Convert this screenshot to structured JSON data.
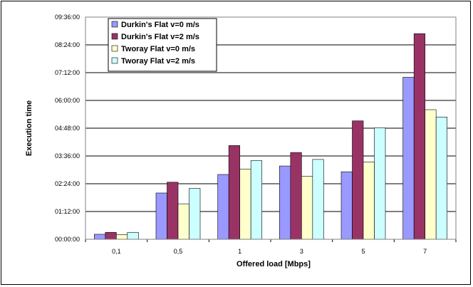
{
  "chart_data": {
    "type": "bar",
    "categories": [
      "0,1",
      "0,5",
      "1",
      "3",
      "5",
      "7"
    ],
    "series": [
      {
        "name": "Durkin's Flat v=0 m/s",
        "color": "#9999ff",
        "values": [
          "00:13:00",
          "02:00:00",
          "02:48:00",
          "03:10:00",
          "02:55:00",
          "07:00:00"
        ]
      },
      {
        "name": "Durkin's Flat v=2 m/s",
        "color": "#993366",
        "values": [
          "00:18:00",
          "02:28:00",
          "04:03:00",
          "03:45:00",
          "05:07:00",
          "08:53:00"
        ]
      },
      {
        "name": "Tworay Flat v=0 m/s",
        "color": "#ffffcc",
        "values": [
          "00:12:00",
          "01:32:00",
          "03:02:00",
          "02:43:00",
          "03:20:00",
          "05:36:00"
        ]
      },
      {
        "name": "Tworay Flat v=2 m/s",
        "color": "#ccffff",
        "values": [
          "00:18:00",
          "02:12:00",
          "03:24:00",
          "03:27:00",
          "04:49:00",
          "05:17:00"
        ]
      }
    ],
    "ylabel": "Execution time",
    "xlabel": "Offered load [Mbps]",
    "y_ticks": [
      "00:00:00",
      "01:12:00",
      "02:24:00",
      "03:36:00",
      "04:48:00",
      "06:00:00",
      "07:12:00",
      "08:24:00",
      "09:36:00"
    ],
    "ylim": [
      "00:00:00",
      "09:36:00"
    ],
    "grid": true,
    "legend_position": "top-left"
  }
}
